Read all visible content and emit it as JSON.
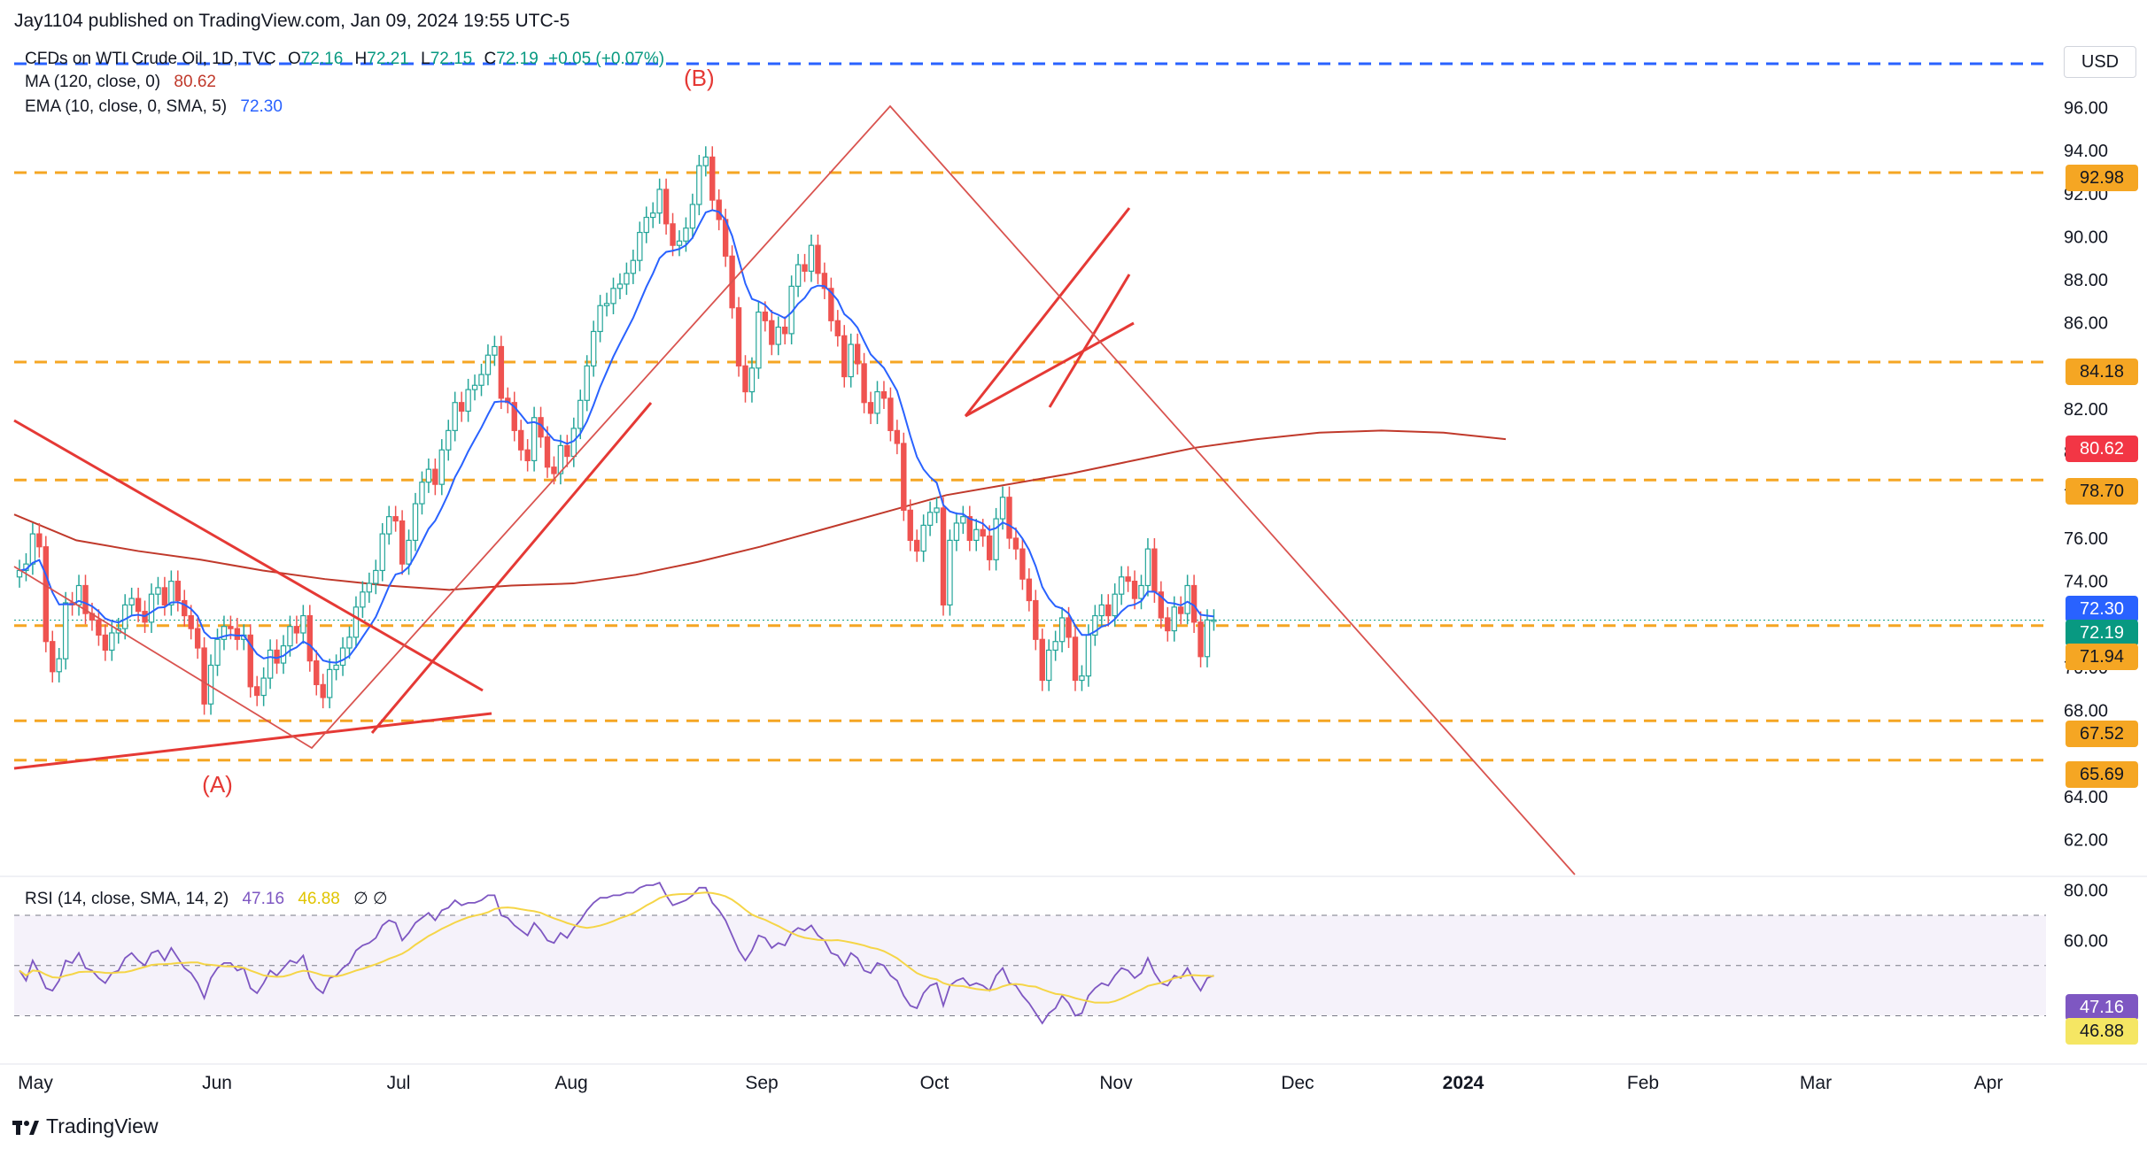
{
  "header": {
    "published": "Jay1104 published on TradingView.com, Jan 09, 2024 19:55 UTC-5",
    "symbol": "CFDs on WTI Crude Oil, 1D, TVC",
    "ohlc": {
      "o_label": "O",
      "o": "72.16",
      "h_label": "H",
      "h": "72.21",
      "l_label": "L",
      "l": "72.15",
      "c_label": "C",
      "c": "72.19",
      "change": "+0.05 (+0.07%)"
    },
    "ma_label": "MA (120, close, 0)",
    "ma_value": "80.62",
    "ema_label": "EMA (10, close, 0, SMA, 5)",
    "ema_value": "72.30",
    "rsi_label": "RSI (14, close, SMA, 14, 2)",
    "rsi_value": "47.16",
    "rsi_ma_value": "46.88",
    "rsi_extra": "∅  ∅"
  },
  "currency": "USD",
  "footer": {
    "brand": "TradingView"
  },
  "colors": {
    "up": "#26a69a",
    "down": "#ef5350",
    "ma": "#c0392b",
    "ema": "#2962ff",
    "rsi": "#7e57c2",
    "rsi_ma": "#f5d547",
    "orange": "#f5a623",
    "trend_red": "#e53935",
    "wave_line": "#d9534f"
  },
  "price_tags": [
    {
      "value": "92.98",
      "bg": "#f5a623",
      "fg": "#131722"
    },
    {
      "value": "84.18",
      "bg": "#f5a623",
      "fg": "#131722"
    },
    {
      "value": "80.62",
      "bg": "#f23645",
      "fg": "#ffffff"
    },
    {
      "value": "78.70",
      "bg": "#f5a623",
      "fg": "#131722"
    },
    {
      "value": "72.30",
      "bg": "#2962ff",
      "fg": "#ffffff"
    },
    {
      "value": "72.19",
      "bg": "#089981",
      "fg": "#ffffff"
    },
    {
      "value": "71.94",
      "bg": "#f5a623",
      "fg": "#131722"
    },
    {
      "value": "67.52",
      "bg": "#f5a623",
      "fg": "#131722"
    },
    {
      "value": "65.69",
      "bg": "#f5a623",
      "fg": "#131722"
    },
    {
      "value": "47.16",
      "bg": "#7e57c2",
      "fg": "#ffffff"
    },
    {
      "value": "46.88",
      "bg": "#f5e663",
      "fg": "#131722"
    }
  ],
  "chart_data": {
    "type": "candlestick",
    "y_ticks": [
      "96.00",
      "94.00",
      "92.00",
      "90.00",
      "88.00",
      "86.00",
      "82.00",
      "80.00",
      "78.00",
      "76.00",
      "74.00",
      "70.00",
      "68.00",
      "64.00",
      "62.00"
    ],
    "rsi_ticks": [
      "80.00",
      "60.00"
    ],
    "x_ticks": [
      "May",
      "Jun",
      "Jul",
      "Aug",
      "Sep",
      "Oct",
      "Nov",
      "Dec",
      "2024",
      "Feb",
      "Mar",
      "Apr"
    ],
    "ylim": [
      60.5,
      97.5
    ],
    "rsi_ylim": [
      15,
      82
    ],
    "horizontal_levels": [
      92.98,
      84.18,
      78.7,
      71.94,
      67.52,
      65.69
    ],
    "top_dashed_level_color": "#2962ff",
    "wave_labels": [
      {
        "text": "(A)",
        "date_index": 30,
        "price": 67
      },
      {
        "text": "(B)",
        "date_index": 103,
        "price": 95.8
      }
    ],
    "close_series": [
      74.5,
      74.8,
      76.2,
      75.6,
      71.2,
      69.8,
      70.4,
      73.0,
      72.9,
      73.8,
      72.5,
      72.2,
      71.5,
      70.8,
      71.6,
      71.8,
      72.9,
      73.2,
      72.6,
      72.1,
      73.4,
      73.7,
      72.9,
      74.0,
      73.1,
      72.4,
      71.8,
      70.9,
      68.3,
      70.1,
      71.3,
      71.9,
      71.8,
      71.3,
      71.5,
      69.1,
      68.7,
      69.5,
      70.8,
      70.2,
      71.0,
      71.9,
      71.6,
      72.4,
      70.3,
      69.2,
      68.6,
      69.9,
      70.1,
      70.9,
      71.4,
      72.8,
      73.5,
      73.9,
      74.5,
      76.2,
      77.0,
      76.8,
      74.8,
      75.9,
      77.6,
      78.6,
      79.2,
      78.5,
      80.1,
      81.0,
      82.3,
      81.9,
      82.9,
      83.1,
      83.6,
      84.5,
      84.9,
      82.5,
      82.3,
      81.0,
      80.1,
      79.6,
      81.6,
      80.7,
      79.3,
      79.0,
      80.3,
      79.8,
      81.1,
      82.4,
      84.0,
      85.6,
      86.8,
      86.9,
      87.6,
      87.8,
      88.3,
      88.9,
      90.2,
      90.9,
      91.1,
      92.2,
      90.6,
      89.6,
      89.8,
      90.4,
      91.5,
      93.3,
      93.7,
      91.7,
      90.8,
      89.1,
      86.7,
      84.0,
      82.8,
      83.9,
      86.5,
      86.1,
      85.0,
      85.8,
      85.5,
      87.7,
      88.7,
      88.4,
      89.6,
      88.3,
      87.6,
      86.1,
      85.4,
      83.5,
      85.0,
      84.1,
      82.3,
      81.8,
      82.8,
      82.5,
      81.0,
      80.4,
      77.3,
      75.9,
      75.4,
      76.6,
      77.2,
      77.4,
      72.9,
      75.9,
      76.7,
      77.0,
      75.9,
      76.4,
      76.1,
      75.0,
      76.9,
      77.9,
      76.0,
      75.5,
      74.1,
      73.1,
      71.3,
      69.4,
      70.8,
      71.2,
      72.3,
      71.4,
      69.4,
      69.6,
      71.5,
      72.4,
      72.9,
      72.4,
      73.4,
      74.2,
      74.0,
      73.2,
      73.8,
      75.5,
      73.5,
      72.3,
      71.7,
      72.8,
      72.5,
      73.8,
      72.1,
      70.5,
      72.2,
      72.2
    ],
    "ma120_series": [
      77.1,
      75.9,
      75.4,
      75.0,
      74.5,
      74.1,
      73.8,
      73.6,
      73.8,
      73.9,
      74.3,
      74.9,
      75.6,
      76.4,
      77.2,
      78.0,
      78.5,
      79.0,
      79.6,
      80.2,
      80.6,
      80.9,
      81.0,
      80.9,
      80.6
    ],
    "rsi_series": [
      48,
      44,
      52,
      47,
      41,
      40,
      44,
      52,
      51,
      55,
      49,
      48,
      45,
      43,
      47,
      48,
      53,
      55,
      52,
      50,
      55,
      56,
      52,
      57,
      53,
      49,
      47,
      43,
      37,
      45,
      49,
      51,
      51,
      48,
      49,
      41,
      39,
      43,
      48,
      46,
      49,
      52,
      51,
      54,
      45,
      41,
      39,
      45,
      46,
      49,
      51,
      56,
      58,
      59,
      61,
      66,
      68,
      67,
      60,
      63,
      67,
      69,
      71,
      68,
      72,
      73,
      76,
      74,
      75,
      75,
      76,
      78,
      78,
      70,
      69,
      66,
      64,
      62,
      67,
      64,
      60,
      59,
      63,
      61,
      65,
      68,
      72,
      75,
      77,
      77,
      78,
      78,
      79,
      79,
      81,
      82,
      82,
      83,
      78,
      74,
      75,
      76,
      78,
      81,
      81,
      75,
      72,
      68,
      62,
      56,
      52,
      56,
      62,
      61,
      57,
      59,
      58,
      63,
      65,
      64,
      66,
      62,
      60,
      55,
      54,
      50,
      55,
      53,
      48,
      47,
      51,
      50,
      46,
      44,
      38,
      34,
      33,
      39,
      42,
      43,
      34,
      42,
      44,
      45,
      42,
      43,
      42,
      40,
      46,
      49,
      43,
      42,
      38,
      35,
      31,
      27,
      31,
      33,
      38,
      35,
      30,
      31,
      38,
      41,
      43,
      42,
      46,
      49,
      48,
      45,
      47,
      53,
      47,
      43,
      42,
      46,
      45,
      49,
      44,
      40,
      45,
      46
    ]
  }
}
